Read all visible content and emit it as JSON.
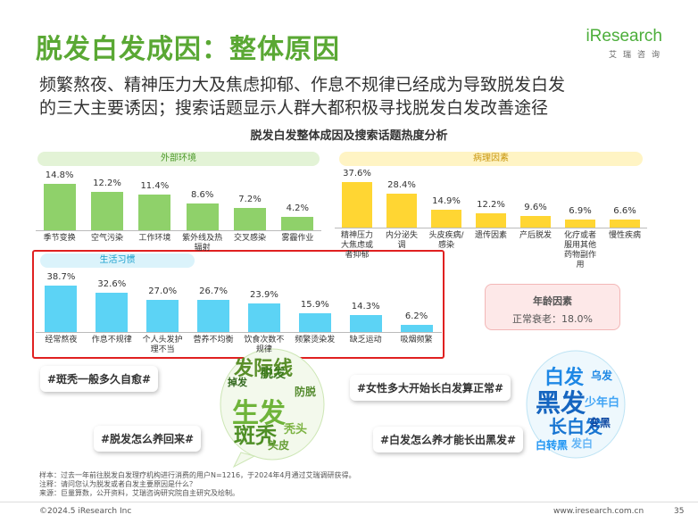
{
  "slide": {
    "title": "脱发白发成因：整体原因",
    "logo": "iResearch",
    "logo_sub": "艾瑞咨询",
    "subtitle": [
      "频繁熬夜、精神压力大及焦虑抑郁、作息不规律已经成为导致脱发白发",
      "的三大主要诱因；搜索话题显示人群大都积极寻找脱发白发改善途径"
    ],
    "chart_title": "脱发白发整体成因及搜索话题热度分析",
    "age_box": {
      "title": "年龄因素",
      "text": "正常衰老：18.0%"
    },
    "hashtags": [
      "#斑秃一般多久自愈#",
      "#脱发怎么养回来#",
      "#女性多大开始长白发算正常#",
      "#白发怎么养才能长出黑发#"
    ],
    "cloud_left": [
      "发际线",
      "生发",
      "脱发",
      "斑秃",
      "秃头",
      "防脱",
      "头皮",
      "掉发"
    ],
    "cloud_right": [
      "白发",
      "黑发",
      "少年白",
      "长白发",
      "白转黑",
      "变黑",
      "发白",
      "乌发"
    ],
    "notes": [
      "样本：过去一年前往脱发白发理疗机构进行消费的用户N=1216，于2024年4月通过艾瑞调研获得。",
      "注释：请问您认为脱发或者白发主要原因是什么？",
      "来源：巨量算数，公开资料，艾瑞咨询研究院自主研究及绘制。"
    ],
    "copyright": "©2024.5 iResearch Inc",
    "website": "www.iresearch.com.cn",
    "page": "35"
  },
  "chart_data": [
    {
      "type": "bar",
      "title": "外部环境",
      "color": "#8fd16a",
      "categories": [
        "季节变换",
        "空气污染",
        "工作环境",
        "紫外线及热辐射",
        "交叉感染",
        "雾霾作业"
      ],
      "values": [
        14.8,
        12.2,
        11.4,
        8.6,
        7.2,
        4.2
      ],
      "value_labels": [
        "14.8%",
        "12.2%",
        "11.4%",
        "8.6%",
        "7.2%",
        "4.2%"
      ]
    },
    {
      "type": "bar",
      "title": "病理因素",
      "color": "#ffd633",
      "categories": [
        "精神压力大焦虑或者抑郁",
        "内分泌失调",
        "头皮疾病/感染",
        "遗传因素",
        "产后脱发",
        "化疗或者服用其他药物副作用",
        "慢性疾病"
      ],
      "values": [
        37.6,
        28.4,
        14.9,
        12.2,
        9.6,
        6.9,
        6.6
      ],
      "value_labels": [
        "37.6%",
        "28.4%",
        "14.9%",
        "12.2%",
        "9.6%",
        "6.9%",
        "6.6%"
      ]
    },
    {
      "type": "bar",
      "title": "生活习惯",
      "color": "#5cd3f5",
      "categories": [
        "经常熬夜",
        "作息不规律",
        "个人头发护理不当",
        "营养不均衡",
        "饮食次数不规律",
        "频繁烫染发",
        "缺乏运动",
        "吸烟频繁"
      ],
      "values": [
        38.7,
        32.6,
        27.0,
        26.7,
        23.9,
        15.9,
        14.3,
        6.2
      ],
      "value_labels": [
        "38.7%",
        "32.6%",
        "27.0%",
        "26.7%",
        "23.9%",
        "15.9%",
        "14.3%",
        "6.2%"
      ]
    }
  ]
}
